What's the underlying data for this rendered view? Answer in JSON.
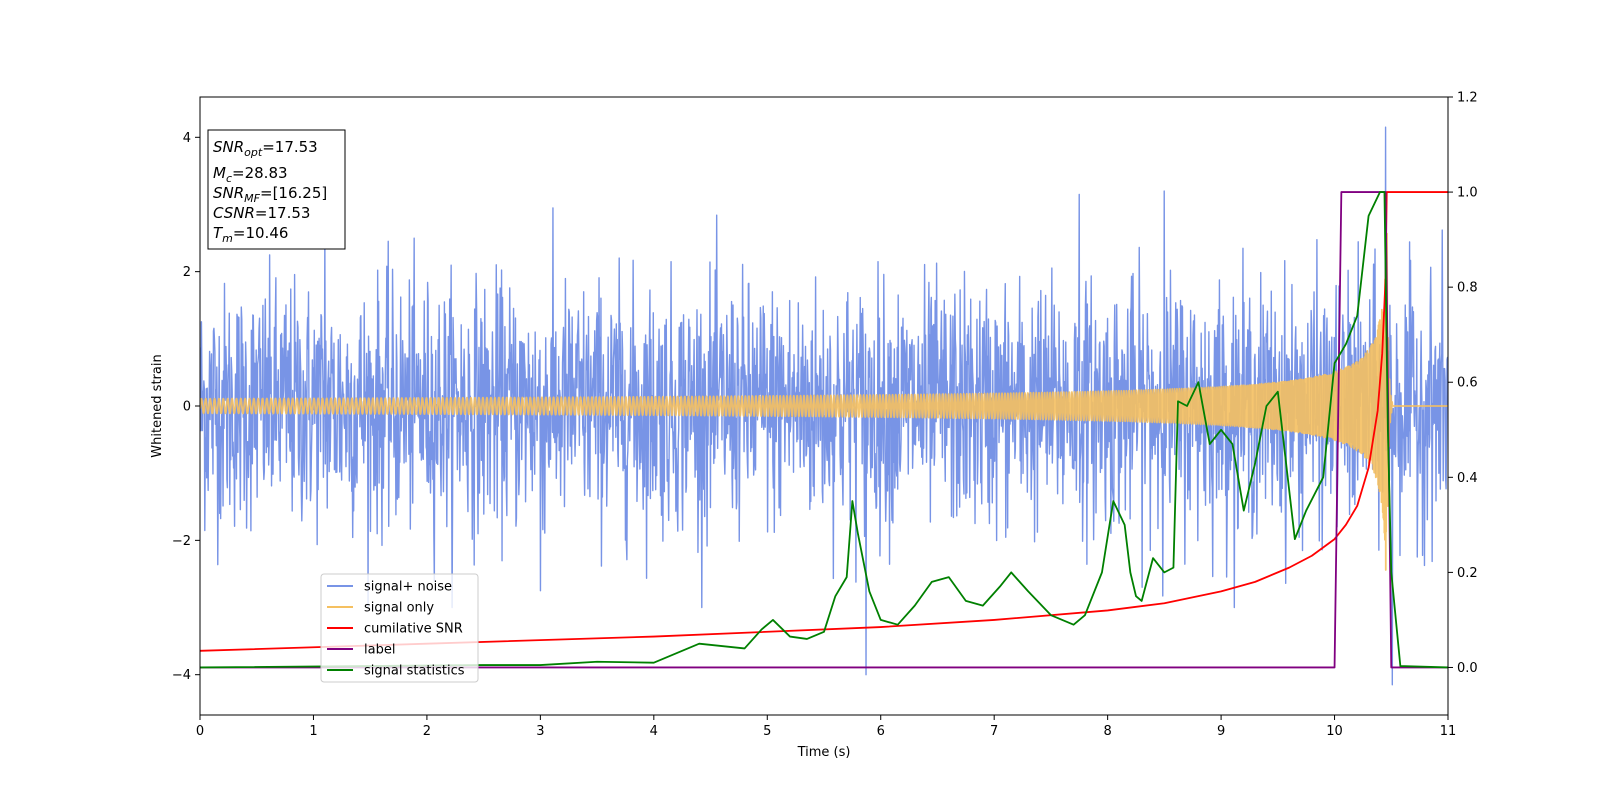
{
  "chart_data": {
    "type": "line",
    "title": "",
    "xlabel": "Time (s)",
    "ylabel": "Whitened strain",
    "xlim": [
      0,
      11
    ],
    "ylim": [
      -4.6,
      4.6
    ],
    "y2lim": [
      -0.1,
      1.2
    ],
    "x_ticks": [
      0,
      1,
      2,
      3,
      4,
      5,
      6,
      7,
      8,
      9,
      10,
      11
    ],
    "y_ticks": [
      -4,
      -2,
      0,
      2,
      4
    ],
    "y2_ticks": [
      0.0,
      0.2,
      0.4,
      0.6,
      0.8,
      1.0,
      1.2
    ],
    "y_tick_labels": [
      "−4",
      "−2",
      "0",
      "2",
      "4"
    ],
    "y2_tick_labels": [
      "0.0",
      "0.2",
      "0.4",
      "0.6",
      "0.8",
      "1.0",
      "1.2"
    ],
    "grid": false,
    "legend_position": "lower-left",
    "annotation": {
      "lines": [
        {
          "sym": "SNR",
          "sub": "opt",
          "text": "=17.53"
        },
        {
          "sym": "M",
          "sub": "c",
          "text": "=28.83"
        },
        {
          "sym": "SNR",
          "sub": "MF",
          "text": "=[16.25]"
        },
        {
          "sym": "CSNR",
          "sub": "",
          "text": "=17.53"
        },
        {
          "sym": "T",
          "sub": "m",
          "text": "=10.46"
        }
      ]
    },
    "series": [
      {
        "name": "signal+ noise",
        "color": "#7894e6",
        "axis": "left",
        "kind": "noise",
        "sigma": 0.9,
        "spikes": [
          [
            5.87,
            -4.0
          ],
          [
            10.45,
            4.15
          ],
          [
            10.51,
            -4.15
          ],
          [
            7.75,
            3.15
          ],
          [
            8.5,
            3.2
          ],
          [
            3.0,
            -2.75
          ],
          [
            1.1,
            2.6
          ]
        ]
      },
      {
        "name": "signal only",
        "color": "#f5c060",
        "axis": "left",
        "kind": "chirp",
        "merger_time": 10.46,
        "peak_amplitude": 3.2
      },
      {
        "name": "cumilative SNR",
        "color": "#ff0000",
        "axis": "right",
        "x": [
          0,
          2,
          4,
          6,
          7,
          8,
          8.5,
          9,
          9.3,
          9.6,
          9.8,
          10,
          10.1,
          10.2,
          10.3,
          10.38,
          10.42,
          10.45,
          10.46,
          11
        ],
        "values": [
          0.035,
          0.05,
          0.065,
          0.085,
          0.1,
          0.12,
          0.135,
          0.16,
          0.18,
          0.21,
          0.235,
          0.27,
          0.3,
          0.34,
          0.42,
          0.54,
          0.66,
          0.82,
          1.0,
          1.0
        ]
      },
      {
        "name": "label",
        "color": "#800080",
        "axis": "right",
        "x": [
          0,
          10.0,
          10.06,
          10.45,
          10.5,
          11
        ],
        "values": [
          0.0,
          0.0,
          1.0,
          1.0,
          0.0,
          0.0
        ]
      },
      {
        "name": "signal statistics",
        "color": "#008000",
        "axis": "right",
        "x": [
          0,
          2.5,
          3.0,
          3.5,
          4.0,
          4.4,
          4.8,
          4.95,
          5.05,
          5.2,
          5.35,
          5.5,
          5.6,
          5.7,
          5.75,
          5.8,
          5.9,
          6.0,
          6.15,
          6.3,
          6.45,
          6.6,
          6.75,
          6.9,
          7.05,
          7.15,
          7.3,
          7.5,
          7.6,
          7.7,
          7.8,
          7.95,
          8.05,
          8.15,
          8.2,
          8.25,
          8.3,
          8.4,
          8.5,
          8.58,
          8.62,
          8.7,
          8.8,
          8.9,
          9.0,
          9.1,
          9.2,
          9.3,
          9.4,
          9.5,
          9.65,
          9.75,
          9.9,
          10.0,
          10.1,
          10.2,
          10.3,
          10.4,
          10.44,
          10.47,
          10.5,
          10.58,
          11.0
        ],
        "values": [
          0.0,
          0.005,
          0.005,
          0.012,
          0.01,
          0.05,
          0.04,
          0.08,
          0.1,
          0.065,
          0.06,
          0.075,
          0.15,
          0.19,
          0.35,
          0.28,
          0.16,
          0.1,
          0.09,
          0.13,
          0.18,
          0.19,
          0.14,
          0.13,
          0.17,
          0.2,
          0.16,
          0.11,
          0.1,
          0.09,
          0.11,
          0.2,
          0.35,
          0.3,
          0.2,
          0.15,
          0.14,
          0.23,
          0.2,
          0.21,
          0.56,
          0.55,
          0.6,
          0.47,
          0.5,
          0.47,
          0.33,
          0.43,
          0.55,
          0.58,
          0.27,
          0.33,
          0.4,
          0.64,
          0.68,
          0.74,
          0.95,
          1.0,
          1.0,
          0.5,
          0.2,
          0.003,
          0.0
        ]
      }
    ]
  }
}
